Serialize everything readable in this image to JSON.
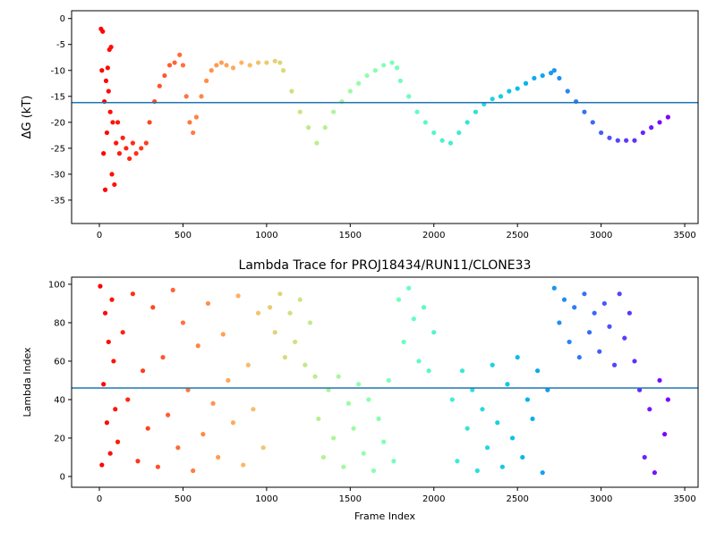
{
  "chart_data": [
    {
      "type": "scatter",
      "ylabel": "ΔG (kT)",
      "colormap": "rainbow_r",
      "hline": -16.2,
      "line_color": "#1f77b4",
      "xlim": [
        -166,
        3580
      ],
      "ylim": [
        -39.5,
        1.5
      ],
      "xticks": [
        0,
        500,
        1000,
        1500,
        2000,
        2500,
        3000,
        3500
      ],
      "yticks": [
        0,
        -5,
        -10,
        -15,
        -20,
        -25,
        -30,
        -35
      ],
      "x": [
        10,
        20,
        15,
        25,
        30,
        35,
        40,
        45,
        50,
        55,
        60,
        65,
        70,
        75,
        80,
        90,
        100,
        110,
        120,
        140,
        160,
        180,
        200,
        220,
        250,
        280,
        300,
        330,
        360,
        390,
        420,
        450,
        480,
        500,
        520,
        540,
        560,
        580,
        610,
        640,
        670,
        700,
        730,
        760,
        800,
        850,
        900,
        950,
        1000,
        1050,
        1080,
        1100,
        1150,
        1200,
        1250,
        1300,
        1350,
        1400,
        1450,
        1500,
        1550,
        1600,
        1650,
        1700,
        1750,
        1780,
        1800,
        1850,
        1900,
        1950,
        2000,
        2050,
        2100,
        2150,
        2200,
        2250,
        2300,
        2350,
        2400,
        2450,
        2500,
        2550,
        2600,
        2650,
        2700,
        2720,
        2750,
        2800,
        2850,
        2900,
        2950,
        3000,
        3050,
        3100,
        3150,
        3200,
        3250,
        3300,
        3350,
        3400
      ],
      "values": [
        -2,
        -2.5,
        -10,
        -26,
        -16,
        -33,
        -12,
        -22,
        -9.5,
        -14,
        -6,
        -18,
        -5.5,
        -30,
        -20,
        -32,
        -24,
        -20,
        -26,
        -23,
        -25,
        -27,
        -24,
        -26,
        -25,
        -24,
        -20,
        -16,
        -13,
        -11,
        -9,
        -8.5,
        -7,
        -9,
        -15,
        -20,
        -22,
        -19,
        -15,
        -12,
        -10,
        -9,
        -8.5,
        -9,
        -9.5,
        -8.5,
        -9,
        -8.5,
        -8.5,
        -8.2,
        -8.5,
        -10,
        -14,
        -18,
        -21,
        -24,
        -21,
        -18,
        -16,
        -14,
        -12.5,
        -11,
        -10,
        -9,
        -8.5,
        -9.5,
        -12,
        -15,
        -18,
        -20,
        -22,
        -23.5,
        -24,
        -22,
        -20,
        -18,
        -16.5,
        -15.5,
        -15,
        -14,
        -13.5,
        -12.5,
        -11.5,
        -11,
        -10.5,
        -10,
        -11.5,
        -14,
        -16,
        -18,
        -20,
        -22,
        -23,
        -23.5,
        -23.5,
        -23.5,
        -22,
        -21,
        -20,
        -19
      ]
    },
    {
      "type": "scatter",
      "title": "Lambda Trace for PROJ18434/RUN11/CLONE33",
      "xlabel": "Frame Index",
      "ylabel": "Lambda Index",
      "colormap": "rainbow_r",
      "hline": 46,
      "line_color": "#1f77b4",
      "xlim": [
        -166,
        3580
      ],
      "ylim": [
        -5.6,
        103.7
      ],
      "xticks": [
        0,
        500,
        1000,
        1500,
        2000,
        2500,
        3000,
        3500
      ],
      "yticks": [
        0,
        20,
        40,
        60,
        80,
        100
      ],
      "x": [
        5,
        15,
        25,
        35,
        45,
        55,
        65,
        75,
        85,
        95,
        110,
        140,
        170,
        200,
        230,
        260,
        290,
        320,
        350,
        380,
        410,
        440,
        470,
        500,
        530,
        560,
        590,
        620,
        650,
        680,
        710,
        740,
        770,
        800,
        830,
        860,
        890,
        920,
        950,
        980,
        1020,
        1050,
        1080,
        1110,
        1140,
        1170,
        1200,
        1230,
        1260,
        1290,
        1310,
        1340,
        1370,
        1400,
        1430,
        1460,
        1490,
        1520,
        1550,
        1580,
        1610,
        1640,
        1670,
        1700,
        1730,
        1760,
        1790,
        1820,
        1850,
        1880,
        1910,
        1940,
        1970,
        2000,
        2110,
        2140,
        2170,
        2200,
        2230,
        2260,
        2290,
        2320,
        2350,
        2380,
        2410,
        2440,
        2470,
        2500,
        2530,
        2560,
        2590,
        2620,
        2650,
        2680,
        2720,
        2750,
        2780,
        2810,
        2840,
        2870,
        2900,
        2930,
        2960,
        2990,
        3020,
        3050,
        3080,
        3110,
        3140,
        3170,
        3200,
        3230,
        3260,
        3290,
        3320,
        3350,
        3380,
        3400
      ],
      "values": [
        99,
        6,
        48,
        85,
        28,
        70,
        12,
        92,
        60,
        35,
        18,
        75,
        40,
        95,
        8,
        55,
        25,
        88,
        5,
        62,
        32,
        97,
        15,
        80,
        45,
        3,
        68,
        22,
        90,
        38,
        10,
        74,
        50,
        28,
        94,
        6,
        58,
        35,
        85,
        15,
        88,
        75,
        95,
        62,
        85,
        70,
        92,
        58,
        80,
        52,
        30,
        10,
        45,
        20,
        52,
        5,
        38,
        25,
        48,
        12,
        40,
        3,
        30,
        18,
        50,
        8,
        92,
        70,
        98,
        82,
        60,
        88,
        55,
        75,
        40,
        8,
        55,
        25,
        45,
        3,
        35,
        15,
        58,
        28,
        5,
        48,
        20,
        62,
        10,
        40,
        30,
        55,
        2,
        45,
        98,
        80,
        92,
        70,
        88,
        62,
        95,
        75,
        85,
        65,
        90,
        78,
        58,
        95,
        72,
        85,
        60,
        45,
        10,
        35,
        2,
        50,
        22,
        40
      ]
    }
  ]
}
